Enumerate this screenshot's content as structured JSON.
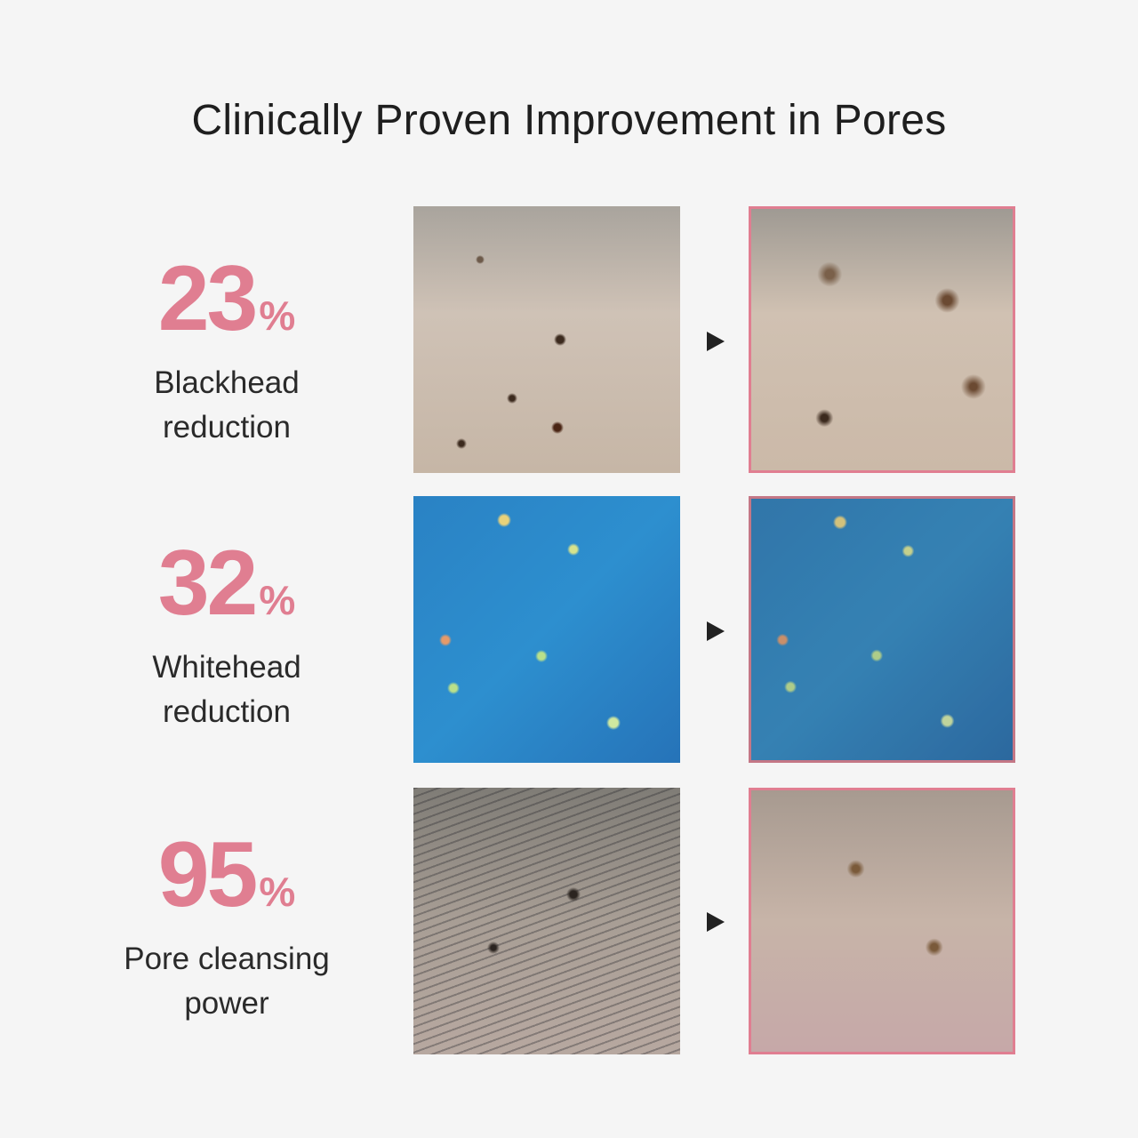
{
  "title": "Clinically Proven Improvement in Pores",
  "colors": {
    "accent": "#e07e91",
    "background": "#f5f5f5"
  },
  "stats": [
    {
      "value": "23",
      "unit": "%",
      "label_line1": "Blackhead",
      "label_line2": "reduction"
    },
    {
      "value": "32",
      "unit": "%",
      "label_line1": "Whitehead",
      "label_line2": "reduction"
    },
    {
      "value": "95",
      "unit": "%",
      "label_line1": "Pore cleansing",
      "label_line2": "power"
    }
  ],
  "icons": {
    "arrow": "play-triangle-icon"
  }
}
